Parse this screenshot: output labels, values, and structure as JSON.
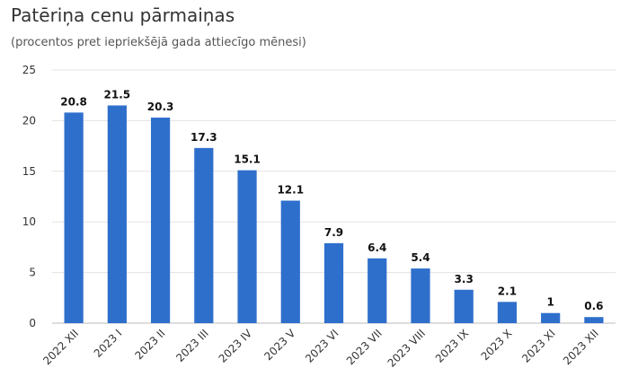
{
  "chart_data": {
    "type": "bar",
    "title": "Patēriņa cenu pārmaiņas",
    "subtitle": "(procentos pret iepriekšējā gada attiecīgo mēnesi)",
    "categories": [
      "2022 XII",
      "2023 I",
      "2023 II",
      "2023 III",
      "2023 IV",
      "2023 V",
      "2023 VI",
      "2023 VII",
      "2023 VIII",
      "2023 IX",
      "2023 X",
      "2023 XI",
      "2023 XII"
    ],
    "values": [
      20.8,
      21.5,
      20.3,
      17.3,
      15.1,
      12.1,
      7.9,
      6.4,
      5.4,
      3.3,
      2.1,
      1,
      0.6
    ],
    "data_labels": [
      "20.8",
      "21.5",
      "20.3",
      "17.3",
      "15.1",
      "12.1",
      "7.9",
      "6.4",
      "5.4",
      "3.3",
      "2.1",
      "1",
      "0.6"
    ],
    "y_ticks": [
      0,
      5,
      10,
      15,
      20,
      25
    ],
    "ylim": [
      0,
      25
    ],
    "xlabel": "",
    "ylabel": "",
    "grid": true,
    "legend": false,
    "bar_color": "#2f6fcc",
    "grid_color": "#e3e3e3"
  }
}
